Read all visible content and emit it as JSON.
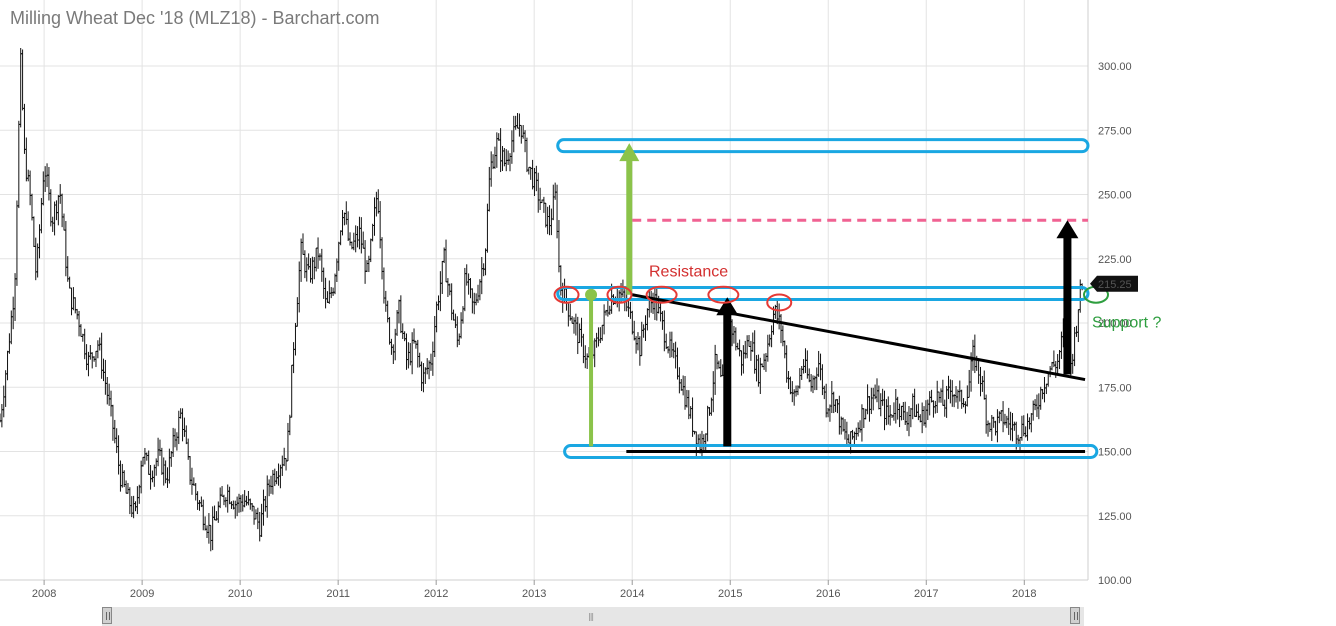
{
  "header": {
    "title": "Milling Wheat Dec '18 (MLZ18) - Barchart.com"
  },
  "chart_data": {
    "type": "ohlc",
    "title": "Milling Wheat Dec '18 (MLZ18) - Barchart.com",
    "xlabel": "",
    "ylabel": "",
    "xlim": [
      2007.55,
      2018.65
    ],
    "ylim": [
      100,
      300
    ],
    "grid": true,
    "x_ticks": [
      "2008",
      "2009",
      "2010",
      "2011",
      "2012",
      "2013",
      "2014",
      "2015",
      "2016",
      "2017",
      "2018"
    ],
    "y_ticks": [
      "100.00",
      "125.00",
      "150.00",
      "175.00",
      "200.00",
      "225.00",
      "250.00",
      "275.00",
      "300.00"
    ],
    "last_price": 215.25,
    "last_price_label": "215.25",
    "price_path": [
      [
        2007.55,
        162
      ],
      [
        2007.62,
        185
      ],
      [
        2007.7,
        215
      ],
      [
        2007.76,
        302
      ],
      [
        2007.8,
        265
      ],
      [
        2007.86,
        248
      ],
      [
        2007.92,
        218
      ],
      [
        2008.0,
        262
      ],
      [
        2008.08,
        240
      ],
      [
        2008.16,
        252
      ],
      [
        2008.25,
        212
      ],
      [
        2008.35,
        202
      ],
      [
        2008.45,
        185
      ],
      [
        2008.55,
        192
      ],
      [
        2008.62,
        178
      ],
      [
        2008.7,
        160
      ],
      [
        2008.78,
        140
      ],
      [
        2008.85,
        132
      ],
      [
        2008.93,
        125
      ],
      [
        2009.0,
        150
      ],
      [
        2009.08,
        142
      ],
      [
        2009.17,
        148
      ],
      [
        2009.25,
        140
      ],
      [
        2009.33,
        155
      ],
      [
        2009.4,
        165
      ],
      [
        2009.48,
        142
      ],
      [
        2009.56,
        132
      ],
      [
        2009.63,
        125
      ],
      [
        2009.7,
        118
      ],
      [
        2009.78,
        128
      ],
      [
        2009.86,
        135
      ],
      [
        2009.95,
        130
      ],
      [
        2010.05,
        131
      ],
      [
        2010.15,
        125
      ],
      [
        2010.2,
        121
      ],
      [
        2010.3,
        138
      ],
      [
        2010.4,
        145
      ],
      [
        2010.48,
        150
      ],
      [
        2010.55,
        195
      ],
      [
        2010.62,
        228
      ],
      [
        2010.7,
        218
      ],
      [
        2010.8,
        228
      ],
      [
        2010.88,
        205
      ],
      [
        2010.95,
        215
      ],
      [
        2011.05,
        246
      ],
      [
        2011.12,
        228
      ],
      [
        2011.22,
        235
      ],
      [
        2011.3,
        218
      ],
      [
        2011.4,
        252
      ],
      [
        2011.48,
        205
      ],
      [
        2011.55,
        190
      ],
      [
        2011.62,
        205
      ],
      [
        2011.7,
        185
      ],
      [
        2011.78,
        192
      ],
      [
        2011.86,
        178
      ],
      [
        2011.95,
        186
      ],
      [
        2012.0,
        205
      ],
      [
        2012.08,
        225
      ],
      [
        2012.16,
        205
      ],
      [
        2012.22,
        192
      ],
      [
        2012.3,
        218
      ],
      [
        2012.38,
        205
      ],
      [
        2012.45,
        218
      ],
      [
        2012.5,
        228
      ],
      [
        2012.55,
        260
      ],
      [
        2012.62,
        270
      ],
      [
        2012.7,
        262
      ],
      [
        2012.78,
        272
      ],
      [
        2012.86,
        278
      ],
      [
        2012.93,
        262
      ],
      [
        2013.0,
        255
      ],
      [
        2013.08,
        245
      ],
      [
        2013.15,
        238
      ],
      [
        2013.22,
        250
      ],
      [
        2013.26,
        215
      ],
      [
        2013.33,
        208
      ],
      [
        2013.4,
        200
      ],
      [
        2013.48,
        192
      ],
      [
        2013.55,
        185
      ],
      [
        2013.62,
        190
      ],
      [
        2013.7,
        200
      ],
      [
        2013.78,
        210
      ],
      [
        2013.86,
        212
      ],
      [
        2013.93,
        208
      ],
      [
        2014.0,
        200
      ],
      [
        2014.08,
        190
      ],
      [
        2014.15,
        205
      ],
      [
        2014.22,
        210
      ],
      [
        2014.3,
        200
      ],
      [
        2014.38,
        190
      ],
      [
        2014.48,
        180
      ],
      [
        2014.55,
        170
      ],
      [
        2014.62,
        160
      ],
      [
        2014.7,
        152
      ],
      [
        2014.78,
        165
      ],
      [
        2014.85,
        185
      ],
      [
        2014.92,
        175
      ],
      [
        2015.0,
        200
      ],
      [
        2015.06,
        192
      ],
      [
        2015.12,
        185
      ],
      [
        2015.2,
        195
      ],
      [
        2015.28,
        180
      ],
      [
        2015.36,
        188
      ],
      [
        2015.45,
        205
      ],
      [
        2015.52,
        198
      ],
      [
        2015.58,
        180
      ],
      [
        2015.66,
        170
      ],
      [
        2015.74,
        185
      ],
      [
        2015.82,
        175
      ],
      [
        2015.9,
        185
      ],
      [
        2015.98,
        168
      ],
      [
        2016.06,
        172
      ],
      [
        2016.14,
        158
      ],
      [
        2016.22,
        153
      ],
      [
        2016.3,
        160
      ],
      [
        2016.38,
        168
      ],
      [
        2016.46,
        172
      ],
      [
        2016.54,
        168
      ],
      [
        2016.62,
        163
      ],
      [
        2016.7,
        170
      ],
      [
        2016.78,
        162
      ],
      [
        2016.86,
        168
      ],
      [
        2016.94,
        162
      ],
      [
        2017.02,
        168
      ],
      [
        2017.1,
        172
      ],
      [
        2017.18,
        168
      ],
      [
        2017.26,
        175
      ],
      [
        2017.34,
        170
      ],
      [
        2017.42,
        172
      ],
      [
        2017.48,
        188
      ],
      [
        2017.56,
        178
      ],
      [
        2017.62,
        162
      ],
      [
        2017.7,
        160
      ],
      [
        2017.78,
        163
      ],
      [
        2017.86,
        160
      ],
      [
        2017.94,
        158
      ],
      [
        2018.02,
        160
      ],
      [
        2018.1,
        165
      ],
      [
        2018.18,
        175
      ],
      [
        2018.26,
        182
      ],
      [
        2018.34,
        185
      ],
      [
        2018.4,
        196
      ],
      [
        2018.46,
        180
      ],
      [
        2018.52,
        196
      ],
      [
        2018.56,
        210
      ],
      [
        2018.6,
        215.25
      ]
    ],
    "annotations": {
      "resistance_label": "Resistance",
      "support_label": "Support ?",
      "horizontal_bands": [
        {
          "name": "top-target-band",
          "x_start": 2013.24,
          "x_end": 2018.65,
          "y": 269,
          "color": "#1aa7e2"
        },
        {
          "name": "resistance-band",
          "x_start": 2013.24,
          "x_end": 2018.65,
          "y": 211.5,
          "color": "#1aa7e2"
        },
        {
          "name": "support-band",
          "x_start": 2013.31,
          "x_end": 2018.74,
          "y": 150,
          "color": "#1aa7e2"
        }
      ],
      "target_dashed_line": {
        "x_start": 2014.0,
        "x_end": 2018.65,
        "y": 240,
        "color": "#f06292"
      },
      "trend_line": {
        "x_start": 2014.0,
        "y_start": 211,
        "x_end": 2018.62,
        "y_end": 178,
        "color": "#000000"
      },
      "floor_line": {
        "x_start": 2013.94,
        "x_end": 2018.62,
        "y": 150,
        "color": "#000000"
      },
      "green_arrows": [
        {
          "x": 2013.58,
          "y_from": 152,
          "y_to": 211,
          "color": "#8bc34a"
        },
        {
          "x": 2013.97,
          "y_from": 211,
          "y_to": 270,
          "color": "#8bc34a"
        }
      ],
      "black_arrows": [
        {
          "x": 2014.97,
          "y_from": 152,
          "y_to": 210,
          "color": "#000000"
        },
        {
          "x": 2018.44,
          "y_from": 180,
          "y_to": 240,
          "color": "#000000"
        }
      ],
      "red_circles": [
        {
          "x": 2013.33,
          "y": 211
        },
        {
          "x": 2013.87,
          "y": 211
        },
        {
          "x": 2014.3,
          "y": 211
        },
        {
          "x": 2014.93,
          "y": 211
        },
        {
          "x": 2015.5,
          "y": 208
        }
      ],
      "colors": {
        "red_circle": "#e53935",
        "resistance_text": "#d32f2f",
        "support_text": "#2e9e3f",
        "green_circle": "#2e9e3f",
        "price_tag_bg": "#111111"
      }
    }
  },
  "scrollbar": {
    "grip": "|||"
  }
}
